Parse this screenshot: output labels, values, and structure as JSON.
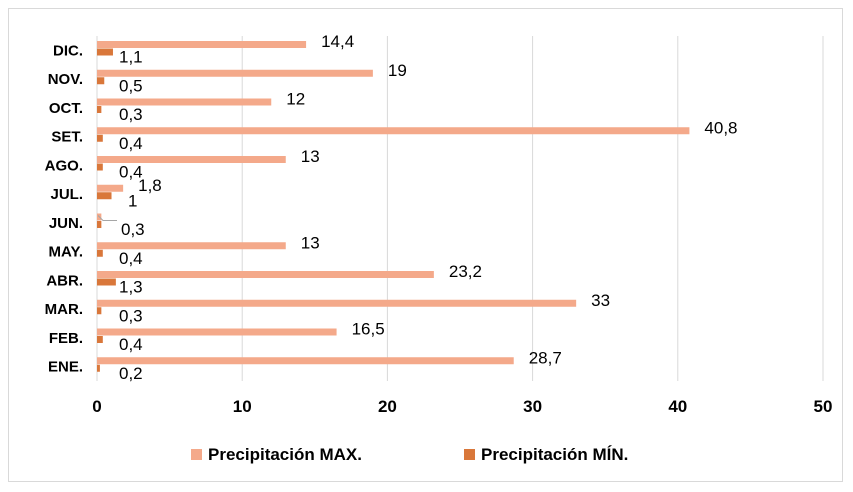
{
  "chart_data": {
    "type": "bar",
    "orientation": "horizontal",
    "title": "",
    "xlabel": "",
    "ylabel": "",
    "categories": [
      "ENE.",
      "FEB.",
      "MAR.",
      "ABR.",
      "MAY.",
      "JUN.",
      "JUL.",
      "AGO.",
      "SET.",
      "OCT.",
      "NOV.",
      "DIC."
    ],
    "series": [
      {
        "name": "Precipitación MAX.",
        "color": "#f4a98a",
        "values": [
          28.7,
          16.5,
          33,
          23.2,
          13,
          0.3,
          1.8,
          13,
          40.8,
          12,
          19,
          14.4
        ],
        "labels": [
          "28,7",
          "16,5",
          "33",
          "23,2",
          "13",
          "",
          "1,8",
          "13",
          "40,8",
          "12",
          "19",
          "14,4"
        ]
      },
      {
        "name": "Precipitación MÍN.",
        "color": "#d9773a",
        "values": [
          0.2,
          0.4,
          0.3,
          1.3,
          0.4,
          0.3,
          1,
          0.4,
          0.4,
          0.3,
          0.5,
          1.1
        ],
        "labels": [
          "0,2",
          "0,4",
          "0,3",
          "1,3",
          "0,4",
          "0,3",
          "1",
          "0,4",
          "0,4",
          "0,3",
          "0,5",
          "1,1"
        ]
      }
    ],
    "xlim": [
      0,
      50
    ],
    "xticks": [
      0,
      10,
      20,
      30,
      40,
      50
    ],
    "xtick_labels": [
      "0",
      "10",
      "20",
      "30",
      "40",
      "50"
    ],
    "grid": true,
    "gridline_color": "#d9d9d9",
    "legend": "bottom"
  }
}
